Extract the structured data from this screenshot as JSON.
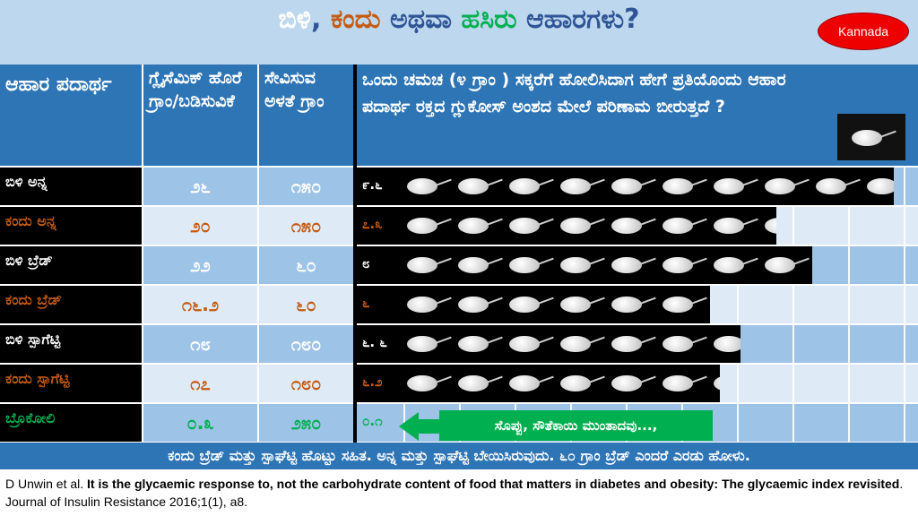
{
  "title": {
    "parts": [
      {
        "text": "ಬಿಳಿ",
        "color": "#ffffff"
      },
      {
        "text": ", ",
        "color": "#2f5597"
      },
      {
        "text": "ಕಂದು",
        "color": "#c55a11"
      },
      {
        "text": " ಅಥವಾ ",
        "color": "#2f5597"
      },
      {
        "text": "ಹಸಿರು",
        "color": "#00b050"
      },
      {
        "text": " ಆಹಾರಗಳು?",
        "color": "#2f5597"
      }
    ]
  },
  "language_button": "Kannada",
  "headers": [
    "ಆಹಾರ ಪದಾರ್ಥ",
    "ಗ್ಲೈಸೆಮಿಕ್ ಹೊರೆ ಗ್ರಾಂ/ಬಡಿಸುವಿಕೆ",
    "ಸೇವಿಸುವ ಅಳತೆ ಗ್ರಾಂ",
    "ಒಂದು ಚಮಚ (೪ ಗ್ರಾಂ ) ಸಕ್ಕರೆಗೆ ಹೋಲಿಸಿದಾಗ ಹೇಗೆ ಪ್ರತಿಯೊಂದು ಆಹಾರ ಪದಾರ್ಥ ರಕ್ತದ ಗ್ಲುಕೋಸ್ ಅಂಶದ ಮೇಲೆ ಪರಿಣಾಮ ಬೀರುತ್ತದೆ ?"
  ],
  "header_icon": "sugar-spoon-icon",
  "rows": [
    {
      "food": "ಬಿಳಿ ಅನ್ನ",
      "gl": "೨೬",
      "portion": "೧೫೦",
      "teaspoons_label": "೯.೬",
      "teaspoons": 9.6,
      "color": "#ffffff",
      "bg": "#9dc3e6"
    },
    {
      "food": "ಕಂದು ಅನ್ನ",
      "gl": "೨೦",
      "portion": "೧೫೦",
      "teaspoons_label": "೭.೩",
      "teaspoons": 7.3,
      "color": "#c55a11",
      "bg": "#deebf7"
    },
    {
      "food": "ಬಿಳಿ ಬ್ರೆಡ್",
      "gl": "೨೨",
      "portion": "೬೦",
      "teaspoons_label": "೮",
      "teaspoons": 8,
      "color": "#ffffff",
      "bg": "#9dc3e6"
    },
    {
      "food": "ಕಂದು ಬ್ರೆಡ್",
      "gl": "೧೬.೨",
      "portion": "೬೦",
      "teaspoons_label": "೬",
      "teaspoons": 6,
      "color": "#c55a11",
      "bg": "#deebf7"
    },
    {
      "food": "ಬಿಳಿ ಸ್ಪಾಗೆಟ್ಟಿ",
      "gl": "೧೮",
      "portion": "೧೮೦",
      "teaspoons_label": "೬. ೬",
      "teaspoons": 6.6,
      "color": "#ffffff",
      "bg": "#9dc3e6"
    },
    {
      "food": "ಕಂದು ಸ್ಪಾಗೆಟ್ಟಿ",
      "gl": "೧೭",
      "portion": "೧೮೦",
      "teaspoons_label": "೬.೨",
      "teaspoons": 6.2,
      "color": "#c55a11",
      "bg": "#deebf7"
    },
    {
      "food": "ಬ್ರೊಕೋಲಿ",
      "gl": "೦.೩",
      "portion": "೨೫೦",
      "teaspoons_label": "೦.೧",
      "teaspoons": 0.1,
      "color": "#00b050",
      "bg": "#9dc3e6"
    }
  ],
  "callout": "ಸೊಪ್ಪು, ಸೌತೆಕಾಯಿ ಮುಂತಾದವು...,",
  "footer": "ಕಂದು ಬ್ರೆಡ್ ಮತ್ತು ಸ್ಪಾಘೆಟ್ಟಿ ಹೊಟ್ಟು ಸಹಿತ. ಅನ್ನ ಮತ್ತು ಸ್ಪಾಘೆಟ್ಟಿ ಬೇಯಿಸಿರುವುದು. ೬೦ ಗ್ರಾಂ ಬ್ರೆಡ್ ಎಂದರೆ ಎರಡು ಹೋಳು.",
  "citation": {
    "authors": "D Unwin et al. ",
    "title": "It is the glycaemic response to, not the carbohydrate content of food that matters in diabetes and obesity: The glycaemic index revisited",
    "journal": ". Journal of Insulin Resistance 2016;1(1), a8."
  }
}
